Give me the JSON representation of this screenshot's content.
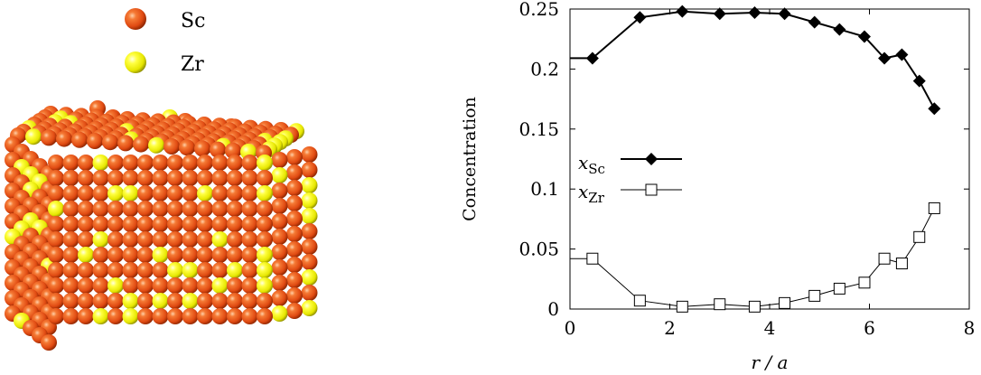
{
  "legend_left": {
    "items": [
      {
        "label": "Sc",
        "color": "#e8501c"
      },
      {
        "label": "Zr",
        "color": "#f2f200"
      }
    ]
  },
  "chart_data": {
    "type": "line",
    "title": "",
    "xlabel": "r / a",
    "ylabel": "Concentration",
    "xlim": [
      0,
      8
    ],
    "ylim": [
      0,
      0.25
    ],
    "xticks": [
      "0",
      "2",
      "4",
      "6",
      "8"
    ],
    "yticks": [
      "0",
      "0.05",
      "0.1",
      "0.15",
      "0.2",
      "0.25"
    ],
    "legend_position": "center-left",
    "series": [
      {
        "name": "xSc",
        "name_main": "x",
        "name_sub": "Sc",
        "marker": "filled-diamond",
        "color": "#000000",
        "x": [
          0,
          0.45,
          1.4,
          2.25,
          3.0,
          3.7,
          4.3,
          4.9,
          5.4,
          5.9,
          6.3,
          6.65,
          7.0,
          7.3
        ],
        "y": [
          0.209,
          0.209,
          0.243,
          0.248,
          0.246,
          0.247,
          0.246,
          0.239,
          0.233,
          0.227,
          0.209,
          0.212,
          0.19,
          0.167
        ]
      },
      {
        "name": "xZr",
        "name_main": "x",
        "name_sub": "Zr",
        "marker": "open-square",
        "color": "#000000",
        "x": [
          0,
          0.45,
          1.4,
          2.25,
          3.0,
          3.7,
          4.3,
          4.9,
          5.4,
          5.9,
          6.3,
          6.65,
          7.0,
          7.3
        ],
        "y": [
          0.042,
          0.042,
          0.007,
          0.002,
          0.004,
          0.002,
          0.005,
          0.011,
          0.017,
          0.022,
          0.042,
          0.038,
          0.06,
          0.084
        ]
      }
    ]
  }
}
